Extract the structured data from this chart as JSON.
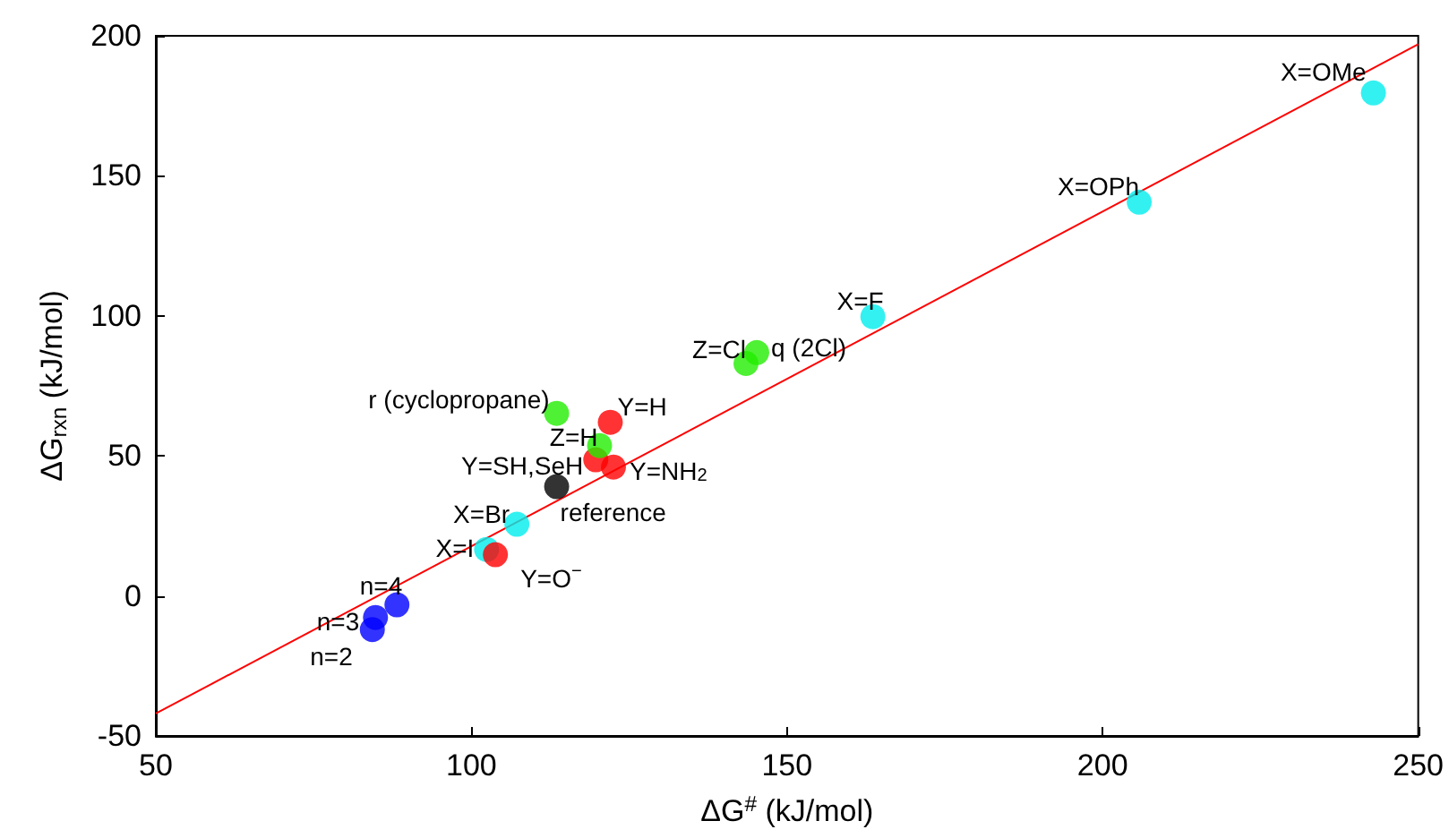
{
  "chart_data": {
    "type": "scatter",
    "xlabel": "ΔG$^{#}$ (kJ/mol)",
    "ylabel": "ΔG$_{rxn}$ (kJ/mol)",
    "xlim": [
      50,
      250
    ],
    "xticks": [
      50,
      100,
      150,
      200,
      250
    ],
    "ylim": [
      -50,
      200
    ],
    "yticks": [
      -50,
      0,
      50,
      100,
      150,
      200
    ],
    "grid": false,
    "marker": "circle",
    "series": [
      {
        "color": "#00eeee",
        "x": [
          242.9,
          205.8,
          163.6,
          107.2,
          102.4
        ],
        "values": [
          179.6,
          140.6,
          99.7,
          25.6,
          16.6
        ]
      },
      {
        "color": "#ff0000",
        "x": [
          122,
          122.5,
          119.7,
          103.8
        ],
        "values": [
          62,
          46,
          48.6,
          14.7
        ]
      },
      {
        "color": "#22ee00",
        "x": [
          113.5,
          120.3,
          143.5,
          145.2
        ],
        "values": [
          65.2,
          53.7,
          83,
          86.9
        ]
      },
      {
        "color": "#000000",
        "x": [
          113.5
        ],
        "values": [
          39
        ]
      },
      {
        "color": "#0000ff",
        "x": [
          84.3,
          84.8,
          88.2
        ],
        "values": [
          -12,
          -7.7,
          -3.2
        ]
      },
      {
        "type": "line",
        "color": "#ff0000",
        "line_style": "solid",
        "marker": "none",
        "x": [
          50,
          250
        ],
        "values": [
          -42,
          197
        ]
      }
    ],
    "annotations": [
      {
        "text": "X=OMe",
        "x": 242.9,
        "y": 179.6
      },
      {
        "text": "X=OPh",
        "x": 205.8,
        "y": 140.6
      },
      {
        "text": "X=F",
        "x": 163.6,
        "y": 99.7
      },
      {
        "text": "X=Br",
        "x": 107.2,
        "y": 25.6
      },
      {
        "text": "X=I",
        "x": 102.4,
        "y": 16.6
      },
      {
        "text": "Y=H",
        "x": 122,
        "y": 62
      },
      {
        "text": "Y=NH$_{2}$",
        "x": 122.5,
        "y": 46
      },
      {
        "text": "Y=SH,SeH",
        "x": 119.7,
        "y": 48.6
      },
      {
        "text": "Y=O$^{−}$",
        "x": 103.8,
        "y": 14.7
      },
      {
        "text": "r (cyclopropane)",
        "x": 113.5,
        "y": 65.2
      },
      {
        "text": "Z=H",
        "x": 120.3,
        "y": 53.7
      },
      {
        "text": "Z=Cl",
        "x": 143.5,
        "y": 83
      },
      {
        "text": "q (2Cl)",
        "x": 145.2,
        "y": 86.9
      },
      {
        "text": "reference",
        "x": 113.5,
        "y": 39
      },
      {
        "text": "n=2",
        "x": 84.3,
        "y": -12
      },
      {
        "text": "n=3",
        "x": 84.8,
        "y": -7.7
      },
      {
        "text": "n=4",
        "x": 88.2,
        "y": -3.2
      }
    ]
  }
}
